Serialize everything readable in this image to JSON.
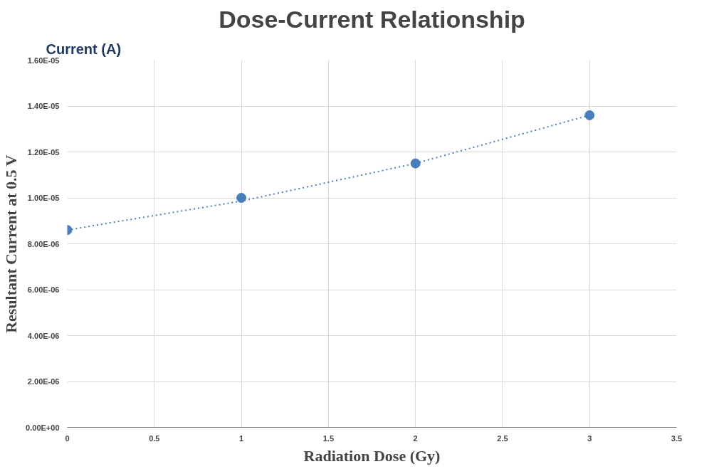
{
  "chart_data": {
    "type": "scatter",
    "title": "Dose-Current Relationship",
    "xlabel": "Radiation Dose (Gy)",
    "ylabel": "Resultant Current at 0.5 V",
    "annotations": [
      "Current (A)"
    ],
    "x": [
      0,
      1,
      2,
      3
    ],
    "series": [
      {
        "color": "#4a7ebb",
        "values": [
          8.6e-06,
          1e-05,
          1.15e-05,
          1.36e-05
        ],
        "marker": "circle"
      },
      {
        "type": "line",
        "color": "#4a7ebb",
        "x": [
          0,
          1,
          2,
          3
        ],
        "values": [
          8.6e-06,
          9.86e-06,
          1.15e-05,
          1.36e-05
        ],
        "line_style": "dotted"
      }
    ],
    "xlim": [
      0,
      3.5
    ],
    "xticks": [
      0,
      0.5,
      1,
      1.5,
      2,
      2.5,
      3,
      3.5
    ],
    "ylim": [
      0,
      1.6e-05
    ],
    "yticks": [
      {
        "value": 0,
        "label": "0.00E+00"
      },
      {
        "value": 2e-06,
        "label": "2.00E-06"
      },
      {
        "value": 4e-06,
        "label": "4.00E-06"
      },
      {
        "value": 6e-06,
        "label": "6.00E-06"
      },
      {
        "value": 8e-06,
        "label": "8.00E-06"
      },
      {
        "value": 1e-05,
        "label": "1.00E-05"
      },
      {
        "value": 1.2e-05,
        "label": "1.20E-05"
      },
      {
        "value": 1.4e-05,
        "label": "1.40E-05"
      },
      {
        "value": 1.6e-05,
        "label": "1.60E-05"
      }
    ],
    "grid": true
  }
}
